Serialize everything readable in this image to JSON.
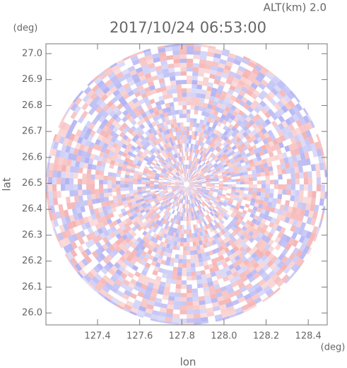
{
  "chart_data": {
    "type": "radar-ppi",
    "title": "2017/10/24 06:53:00",
    "subtitle": "ALT(km) 2.0",
    "x_label": "lon",
    "y_label": "lat",
    "x_unit": "(deg)",
    "y_unit": "(deg)",
    "xlim": [
      127.155,
      128.49
    ],
    "ylim": [
      25.954,
      27.038
    ],
    "xticks": [
      127.4,
      127.6,
      127.8,
      {
        "value": 128.0,
        "label": "128.0"
      },
      128.2,
      128.4
    ],
    "yticks": [
      {
        "value": 26.0,
        "label": "26.0"
      },
      26.1,
      26.2,
      26.3,
      26.4,
      26.5,
      26.6,
      26.7,
      26.8,
      26.9,
      {
        "value": 27.0,
        "label": "27.0"
      }
    ],
    "colors": [
      "#f08c8c",
      "#8c8cec"
    ]
  }
}
